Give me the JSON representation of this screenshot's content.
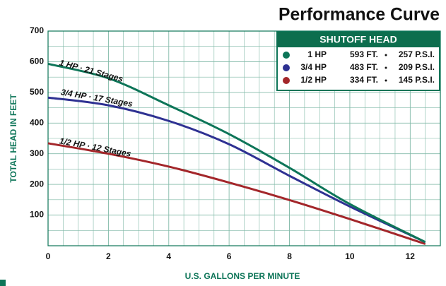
{
  "chart_data": {
    "type": "line",
    "title": "Performance Curve",
    "x_label": "U.S. GALLONS PER MINUTE",
    "y_label": "TOTAL HEAD IN FEET",
    "legend_title": "SHUTOFF HEAD",
    "xlim": [
      0,
      13
    ],
    "ylim": [
      0,
      700
    ],
    "xticks": [
      0,
      2,
      4,
      6,
      8,
      10,
      12
    ],
    "yticks": [
      100,
      200,
      300,
      400,
      500,
      600,
      700
    ],
    "grid": true,
    "x": [
      0,
      2,
      4,
      6,
      8,
      10,
      12.5
    ],
    "series": [
      {
        "name": "1/2 HP",
        "label": "1/2 HP · 12 Stages",
        "shutoff_head": "334 FT.",
        "shutoff_pressure": "145 P.S.I.",
        "color": "#a3262a",
        "values": [
          334,
          300,
          258,
          206,
          149,
          87,
          6
        ]
      },
      {
        "name": "3/4 HP",
        "label": "3/4 HP · 17 Stages",
        "shutoff_head": "483 FT.",
        "shutoff_pressure": "209 P.S.I.",
        "color": "#2e3192",
        "values": [
          483,
          458,
          407,
          331,
          228,
          128,
          12
        ]
      },
      {
        "name": "1 HP",
        "label": "1 HP · 21 Stages",
        "shutoff_head": "593 FT.",
        "shutoff_pressure": "257 P.S.I.",
        "color": "#0d7558",
        "values": [
          593,
          546,
          458,
          364,
          254,
          136,
          12
        ]
      }
    ]
  }
}
